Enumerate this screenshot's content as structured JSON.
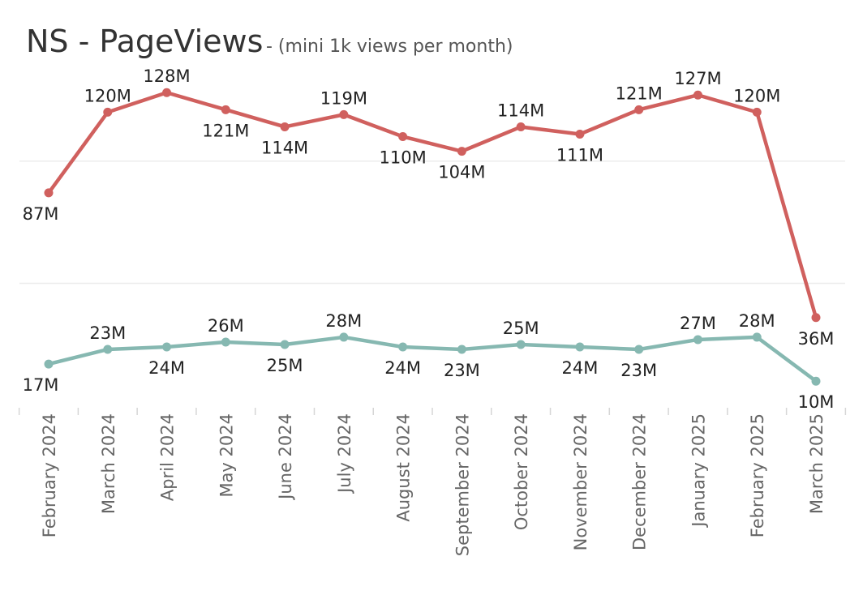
{
  "chart_data": {
    "type": "line",
    "title": "NS - PageViews",
    "subtitle": "- (mini 1k views per month)",
    "categories": [
      "February 2024",
      "March 2024",
      "April 2024",
      "May 2024",
      "June 2024",
      "July 2024",
      "August 2024",
      "September 2024",
      "October 2024",
      "November 2024",
      "December 2024",
      "January 2025",
      "February 2025",
      "March 2025"
    ],
    "series": [
      {
        "color": "#d0605e",
        "values": [
          87,
          120,
          128,
          121,
          114,
          119,
          110,
          104,
          114,
          111,
          121,
          127,
          120,
          36
        ],
        "labels": [
          "87M",
          "120M",
          "128M",
          "121M",
          "114M",
          "119M",
          "110M",
          "104M",
          "114M",
          "111M",
          "121M",
          "127M",
          "120M",
          "36M"
        ],
        "label_positions": [
          "below",
          "above",
          "above",
          "below",
          "below",
          "above",
          "below",
          "below",
          "above",
          "below",
          "above",
          "above",
          "above",
          "below"
        ]
      },
      {
        "color": "#86b8b1",
        "values": [
          17,
          23,
          24,
          26,
          25,
          28,
          24,
          23,
          25,
          24,
          23,
          27,
          28,
          10
        ],
        "labels": [
          "17M",
          "23M",
          "24M",
          "26M",
          "25M",
          "28M",
          "24M",
          "23M",
          "25M",
          "24M",
          "23M",
          "27M",
          "28M",
          "10M"
        ],
        "label_positions": [
          "below",
          "above",
          "below",
          "above",
          "below",
          "above",
          "below",
          "below",
          "above",
          "below",
          "below",
          "above",
          "above",
          "below"
        ]
      }
    ],
    "ylim": [
      0,
      138
    ],
    "grid": true,
    "xlabel": "",
    "ylabel": ""
  }
}
